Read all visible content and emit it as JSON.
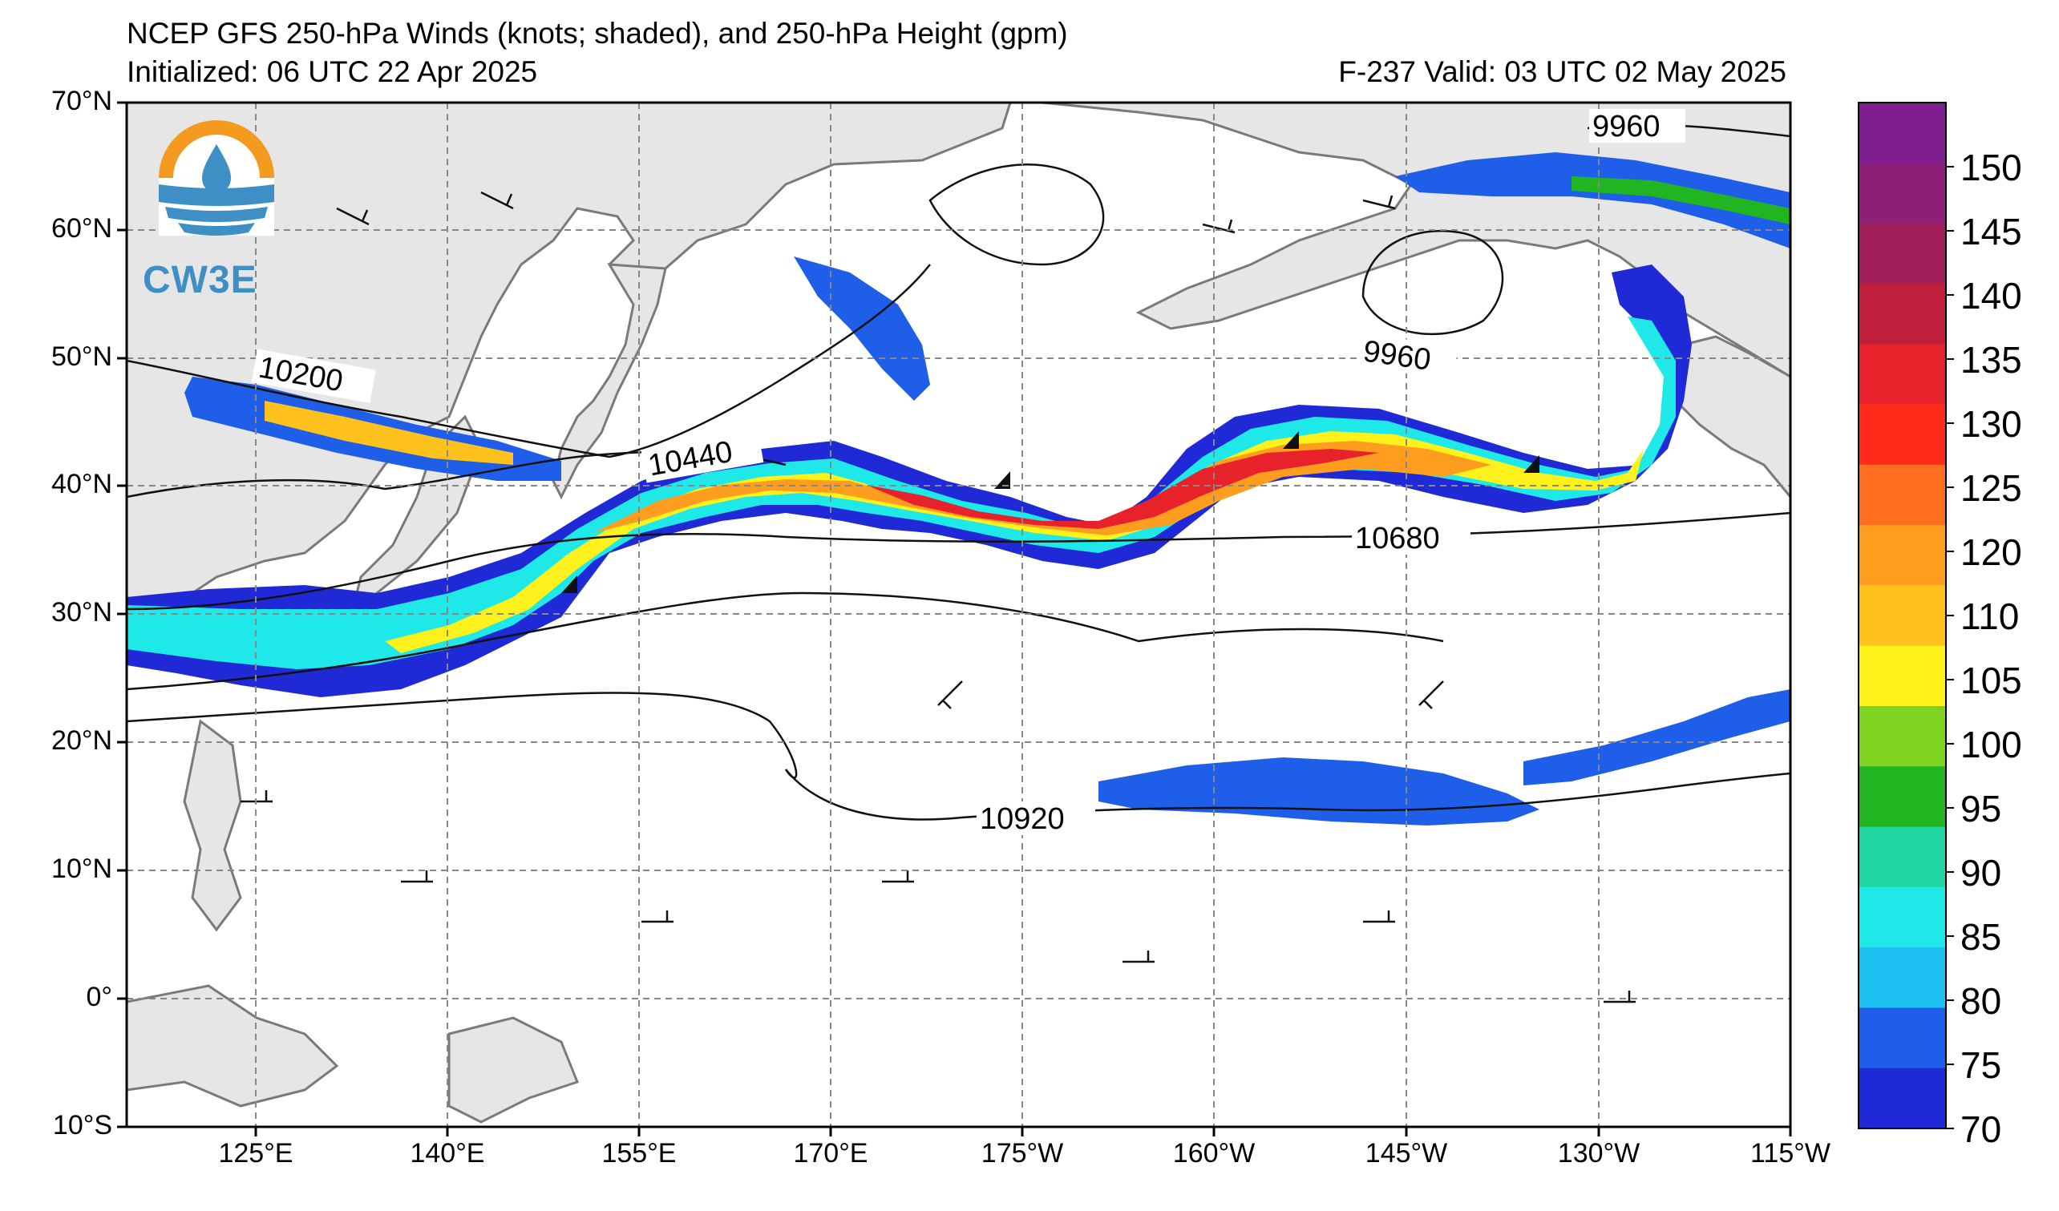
{
  "title": {
    "line1": "NCEP GFS 250-hPa Winds (knots; shaded), and 250-hPa Height (gpm)",
    "line2": "Initialized: 06 UTC 22 Apr 2025",
    "line3": "F-237  Valid: 03 UTC 02 May 2025"
  },
  "logo": {
    "text": "CW3E",
    "icon": "cw3e-logo-icon"
  },
  "axes": {
    "lat_labels": [
      "70°N",
      "60°N",
      "50°N",
      "40°N",
      "30°N",
      "20°N",
      "10°N",
      "0°",
      "10°S"
    ],
    "lon_labels": [
      "125°E",
      "140°E",
      "155°E",
      "170°E",
      "175°W",
      "160°W",
      "145°W",
      "130°W",
      "115°W"
    ]
  },
  "colorbar": {
    "labels": [
      "150",
      "145",
      "140",
      "135",
      "130",
      "125",
      "120",
      "110",
      "105",
      "100",
      "95",
      "90",
      "85",
      "80",
      "75",
      "70"
    ],
    "colors": [
      "#7f1f8f",
      "#8c1f78",
      "#a1205a",
      "#c01f3b",
      "#e8222a",
      "#ff2a1a",
      "#ff6e1f",
      "#ff9d1f",
      "#ffc21c",
      "#fff21c",
      "#7ed321",
      "#22b522",
      "#1fd6a0",
      "#1fe8e8",
      "#1fc0f2",
      "#1f5ee8",
      "#1f2ad6"
    ]
  },
  "contour_labels": [
    "10200",
    "10440",
    "10680",
    "10920",
    "9960",
    "9960"
  ],
  "colors": {
    "land": "#e6e6e6",
    "coast": "#7a7a7a",
    "grid": "#888888"
  }
}
